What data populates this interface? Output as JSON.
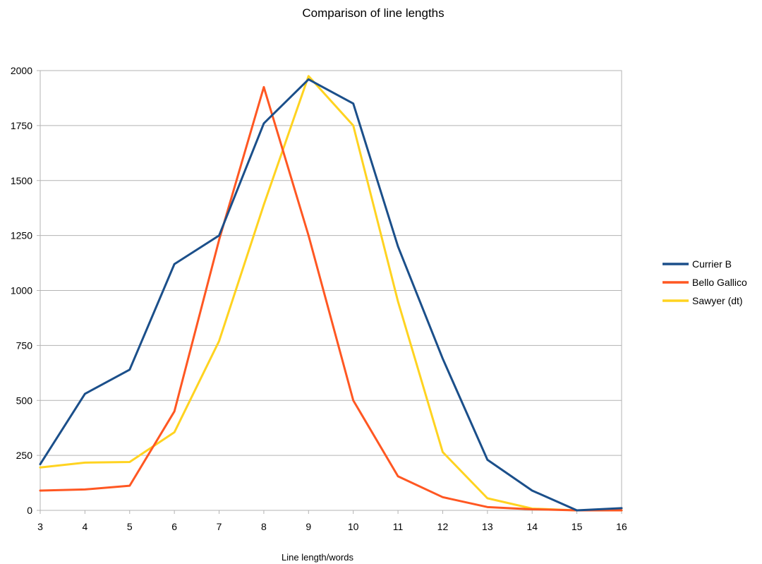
{
  "chart_data": {
    "type": "line",
    "title": "Comparison of line lengths",
    "xlabel": "Line length/words",
    "ylabel": "",
    "x": [
      3,
      4,
      5,
      6,
      7,
      8,
      9,
      10,
      11,
      12,
      13,
      14,
      15,
      16
    ],
    "xlim": [
      3,
      16
    ],
    "ylim": [
      0,
      2000
    ],
    "yticks": [
      0,
      250,
      500,
      750,
      1000,
      1250,
      1500,
      1750,
      2000
    ],
    "grid": true,
    "legend_position": "right",
    "series": [
      {
        "name": "Currier B",
        "color": "#1b4f8a",
        "values": [
          210,
          530,
          640,
          1120,
          1250,
          1760,
          1960,
          1850,
          1200,
          690,
          230,
          90,
          0,
          10
        ]
      },
      {
        "name": "Bello Gallico",
        "color": "#ff5722",
        "values": [
          90,
          95,
          112,
          450,
          1230,
          1925,
          1250,
          500,
          155,
          60,
          15,
          5,
          0,
          0
        ]
      },
      {
        "name": "Sawyer (dt)",
        "color": "#ffd320",
        "values": [
          195,
          217,
          220,
          355,
          770,
          1390,
          1975,
          1750,
          950,
          265,
          55,
          8,
          0,
          0
        ]
      }
    ]
  }
}
